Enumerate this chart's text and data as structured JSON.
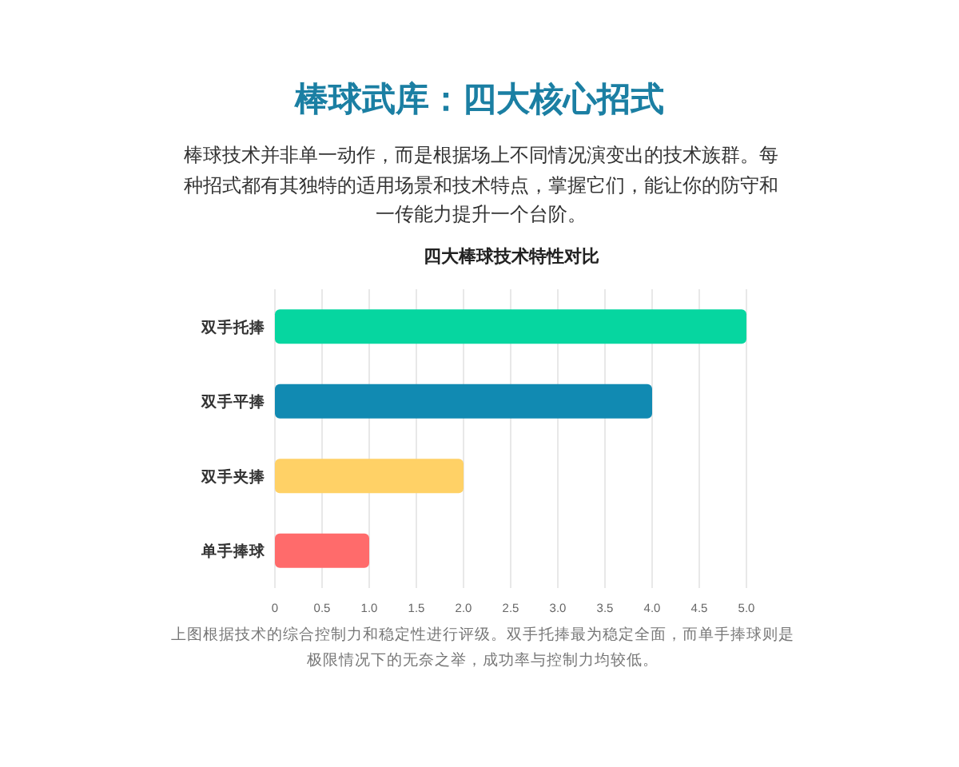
{
  "chart_data": {
    "type": "bar",
    "orientation": "horizontal",
    "title": "棒球武库：四大核心招式",
    "subtitle": "棒球技术并非单一动作，而是根据场上不同情况演变出的技术族群。每种招式都有其独特的适用场景和技术特点，掌握它们，能让你的防守和一传能力提升一个台阶。",
    "annotations": [
      "四大棒球技术特性对比",
      "上图根据技术的综合控制力和稳定性进行评级。双手托捧最为稳定全面，而单手捧球则是极限情况下的无奈之举，成功率与控制力均较低。"
    ],
    "categories": [
      "双手托捧",
      "双手平捧",
      "双手夹捧",
      "单手捧球"
    ],
    "values": [
      5,
      4,
      2,
      1
    ],
    "colors": [
      "#06d6a0",
      "#118ab2",
      "#ffd166",
      "#ff6b6b"
    ],
    "xlim": [
      0,
      5
    ],
    "xticks": [
      0,
      {
        "value": 0.5,
        "label": "0.5"
      },
      {
        "value": 1,
        "label": "1.0"
      },
      {
        "value": 1.5,
        "label": "1.5"
      },
      {
        "value": 2,
        "label": "2.0"
      },
      {
        "value": 2.5,
        "label": "2.5"
      },
      {
        "value": 3,
        "label": "3.0"
      },
      {
        "value": 3.5,
        "label": "3.5"
      },
      {
        "value": 4,
        "label": "4.0"
      },
      {
        "value": 4.5,
        "label": "4.5"
      },
      {
        "value": 5,
        "label": "5.0"
      }
    ],
    "grid": "x"
  }
}
